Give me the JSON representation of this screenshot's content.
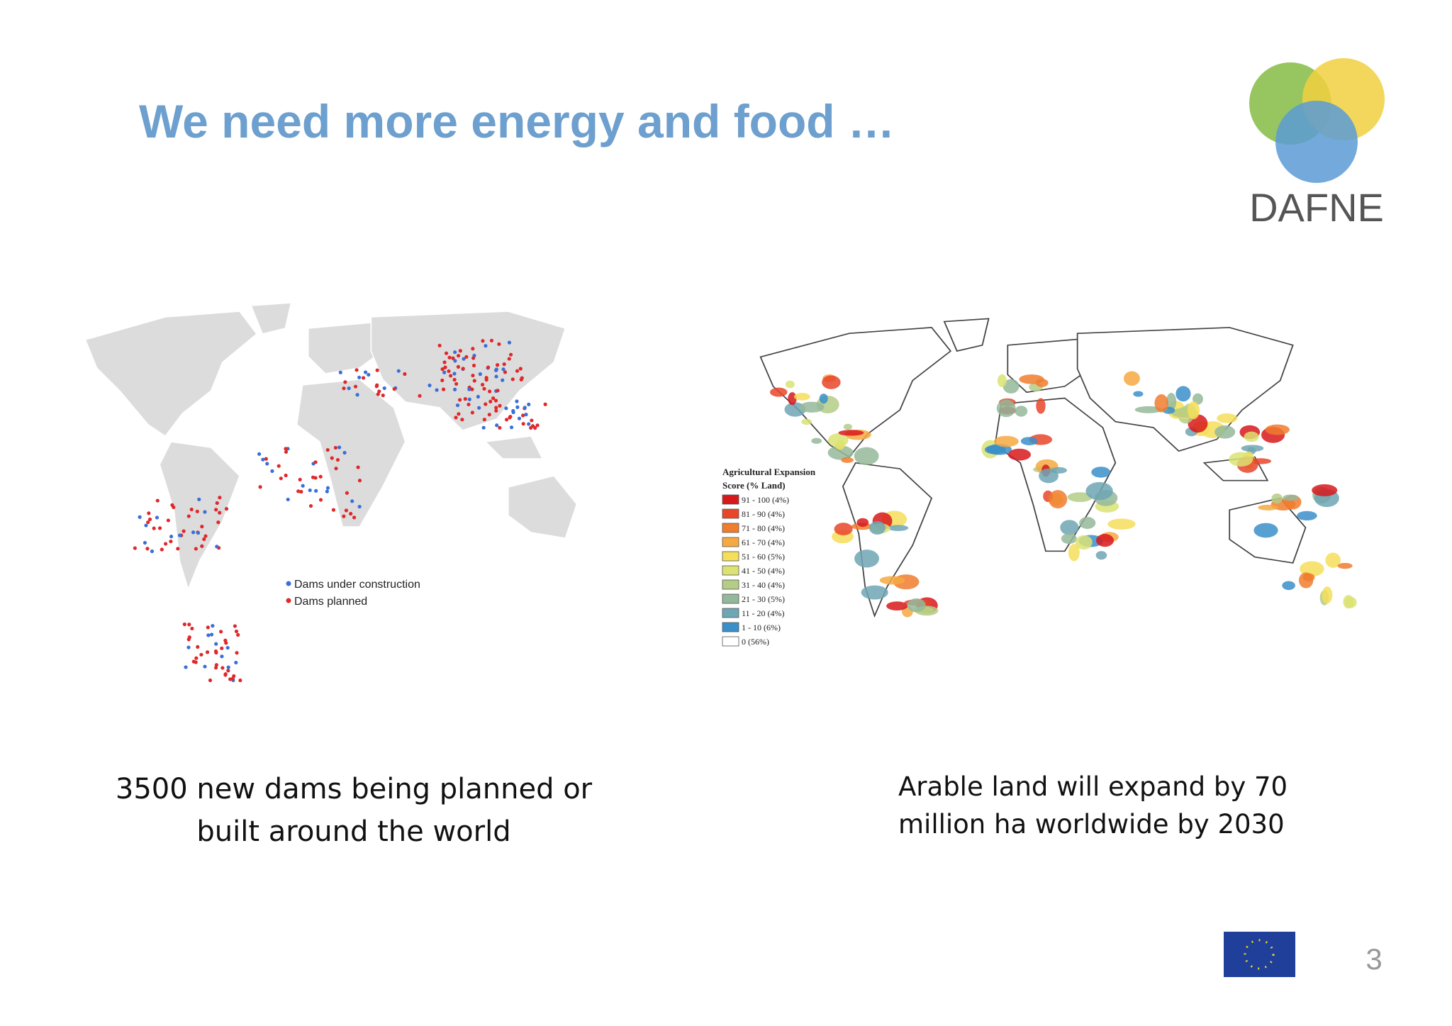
{
  "header": {
    "title": "We need more energy and food …",
    "logo_text": "DAFNE"
  },
  "map_left": {
    "legend": [
      {
        "label": "Dams under construction",
        "color": "#3a6fd8"
      },
      {
        "label": "Dams planned",
        "color": "#e0282a"
      }
    ],
    "caption": [
      "3500 new dams being planned or",
      "built around the world"
    ]
  },
  "map_right": {
    "legend": {
      "title": [
        "Agricultural Expansion",
        "Score (% Land)"
      ],
      "items": [
        {
          "label": "91 - 100 (4%)",
          "color": "#d7191c"
        },
        {
          "label": "81 - 90 (4%)",
          "color": "#e8452a"
        },
        {
          "label": "71 - 80 (4%)",
          "color": "#f07c2e"
        },
        {
          "label": "61 - 70 (4%)",
          "color": "#f6a941"
        },
        {
          "label": "51 - 60 (5%)",
          "color": "#f5de5a"
        },
        {
          "label": "41 - 50 (4%)",
          "color": "#dbe374"
        },
        {
          "label": "31 - 40 (4%)",
          "color": "#b4cd86"
        },
        {
          "label": "21 - 30 (5%)",
          "color": "#94b89a"
        },
        {
          "label": "11 - 20 (4%)",
          "color": "#6fa6b4"
        },
        {
          "label": "1 - 10 (6%)",
          "color": "#3a8fc9"
        },
        {
          "label": "0 (56%)",
          "color": "#ffffff"
        }
      ]
    },
    "caption": [
      "Arable land will expand by 70",
      "million ha worldwide by 2030"
    ]
  },
  "footer": {
    "page_number": "3"
  }
}
